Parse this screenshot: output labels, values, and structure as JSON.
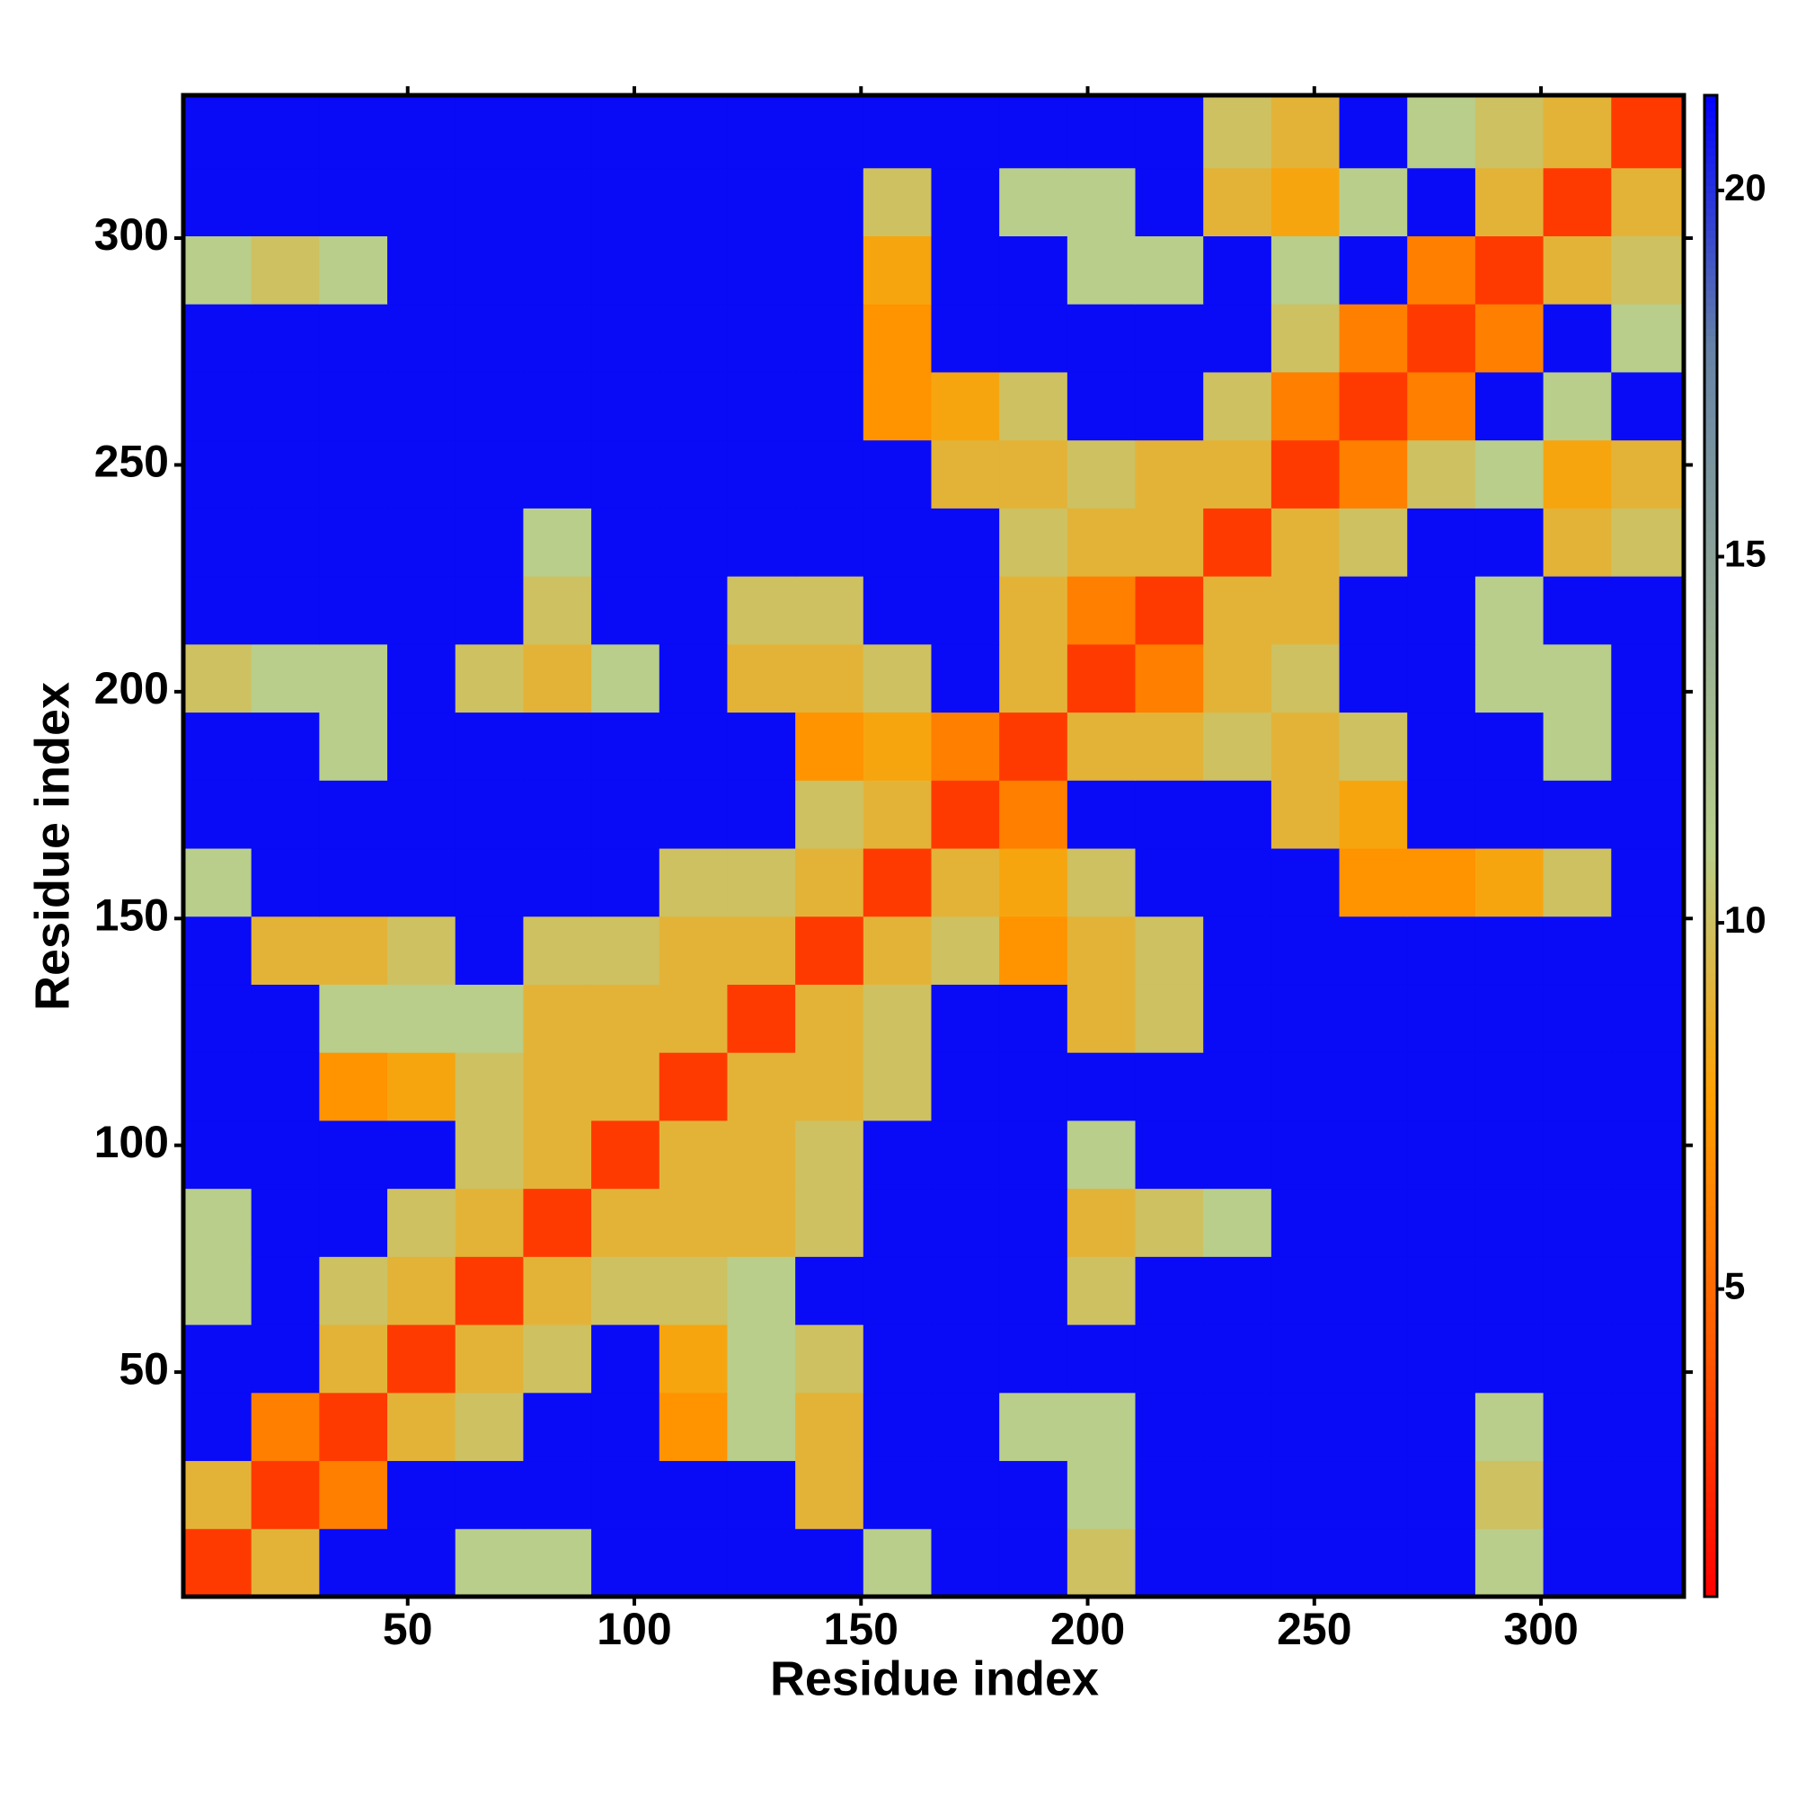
{
  "chart_data": {
    "type": "heatmap",
    "x_label": "Residue index",
    "y_label": "Residue index",
    "bins": [
      0.5,
      15.5,
      30.5,
      45.5,
      60.5,
      75.5,
      90.5,
      105.5,
      120.5,
      135.5,
      150.5,
      165.5,
      180.5,
      195.5,
      210.5,
      225.5,
      240.5,
      255.5,
      270.5,
      285.5,
      300.5,
      315.5,
      331.5
    ],
    "z": [
      [
        3,
        9,
        21,
        21,
        11,
        11,
        21,
        21,
        21,
        21,
        11,
        21,
        21,
        10,
        21,
        21,
        21,
        21,
        21,
        11,
        21,
        21
      ],
      [
        9,
        3,
        6,
        21,
        21,
        21,
        21,
        21,
        21,
        9,
        21,
        21,
        21,
        11,
        21,
        21,
        21,
        21,
        21,
        10,
        21,
        21
      ],
      [
        21,
        6,
        3,
        9,
        10,
        21,
        21,
        7,
        11,
        9,
        21,
        21,
        11,
        11,
        21,
        21,
        21,
        21,
        21,
        11,
        21,
        21
      ],
      [
        21,
        21,
        9,
        3,
        9,
        10,
        21,
        8,
        11,
        10,
        21,
        21,
        21,
        21,
        21,
        21,
        21,
        21,
        21,
        21,
        21,
        21
      ],
      [
        11,
        21,
        10,
        9,
        3,
        9,
        10,
        10,
        11,
        21,
        21,
        21,
        21,
        10,
        21,
        21,
        21,
        21,
        21,
        21,
        21,
        21
      ],
      [
        11,
        21,
        21,
        10,
        9,
        3,
        9,
        9,
        9,
        10,
        21,
        21,
        21,
        9,
        10,
        11,
        21,
        21,
        21,
        21,
        21,
        21
      ],
      [
        21,
        21,
        21,
        21,
        10,
        9,
        3,
        9,
        9,
        10,
        21,
        21,
        21,
        11,
        21,
        21,
        21,
        21,
        21,
        21,
        21,
        21
      ],
      [
        21,
        21,
        7,
        8,
        10,
        9,
        9,
        3,
        9,
        9,
        10,
        21,
        21,
        21,
        21,
        21,
        21,
        21,
        21,
        21,
        21,
        21
      ],
      [
        21,
        21,
        11,
        11,
        11,
        9,
        9,
        9,
        3,
        9,
        10,
        21,
        21,
        9,
        10,
        21,
        21,
        21,
        21,
        21,
        21,
        21
      ],
      [
        21,
        9,
        9,
        10,
        21,
        10,
        10,
        9,
        9,
        3,
        9,
        10,
        7,
        9,
        10,
        21,
        21,
        21,
        21,
        21,
        21,
        21
      ],
      [
        11,
        21,
        21,
        21,
        21,
        21,
        21,
        10,
        10,
        9,
        3,
        9,
        8,
        10,
        21,
        21,
        21,
        7,
        7,
        8,
        10,
        21
      ],
      [
        21,
        21,
        21,
        21,
        21,
        21,
        21,
        21,
        21,
        10,
        9,
        3,
        6,
        21,
        21,
        21,
        9,
        8,
        21,
        21,
        21,
        21
      ],
      [
        21,
        21,
        11,
        21,
        21,
        21,
        21,
        21,
        21,
        7,
        8,
        6,
        3,
        9,
        9,
        10,
        9,
        10,
        21,
        21,
        11,
        21
      ],
      [
        10,
        11,
        11,
        21,
        10,
        9,
        11,
        21,
        9,
        9,
        10,
        21,
        9,
        3,
        6,
        9,
        10,
        21,
        21,
        11,
        11,
        21
      ],
      [
        21,
        21,
        21,
        21,
        21,
        10,
        21,
        21,
        10,
        10,
        21,
        21,
        9,
        6,
        3,
        9,
        9,
        21,
        21,
        11,
        21,
        21
      ],
      [
        21,
        21,
        21,
        21,
        21,
        11,
        21,
        21,
        21,
        21,
        21,
        21,
        10,
        9,
        9,
        3,
        9,
        10,
        21,
        21,
        9,
        10
      ],
      [
        21,
        21,
        21,
        21,
        21,
        21,
        21,
        21,
        21,
        21,
        21,
        9,
        9,
        10,
        9,
        9,
        3,
        6,
        10,
        11,
        8,
        9
      ],
      [
        21,
        21,
        21,
        21,
        21,
        21,
        21,
        21,
        21,
        21,
        7,
        8,
        10,
        21,
        21,
        10,
        6,
        3,
        6,
        21,
        11,
        21
      ],
      [
        21,
        21,
        21,
        21,
        21,
        21,
        21,
        21,
        21,
        21,
        7,
        21,
        21,
        21,
        21,
        21,
        10,
        6,
        3,
        6,
        21,
        11
      ],
      [
        11,
        10,
        11,
        21,
        21,
        21,
        21,
        21,
        21,
        21,
        8,
        21,
        21,
        11,
        11,
        21,
        11,
        21,
        6,
        3,
        9,
        10
      ],
      [
        21,
        21,
        21,
        21,
        21,
        21,
        21,
        21,
        21,
        21,
        10,
        21,
        11,
        11,
        21,
        9,
        8,
        11,
        21,
        9,
        3,
        9
      ],
      [
        21,
        21,
        21,
        21,
        21,
        21,
        21,
        21,
        21,
        21,
        21,
        21,
        21,
        21,
        21,
        10,
        9,
        21,
        11,
        10,
        9,
        3
      ]
    ],
    "xlim": [
      0.5,
      331.5
    ],
    "ylim": [
      0.5,
      331.5
    ],
    "xticks": [
      50,
      100,
      150,
      200,
      250,
      300
    ],
    "yticks": [
      50,
      100,
      150,
      200,
      250,
      300
    ],
    "zlim": [
      0.8,
      21.3
    ],
    "zticks": [
      5,
      10,
      15,
      20
    ],
    "colors": [
      "#ff0000",
      "#ff5a00",
      "#ffa000",
      "#b8cf8c",
      "#92a896",
      "#6582a6",
      "#0000ff"
    ]
  }
}
